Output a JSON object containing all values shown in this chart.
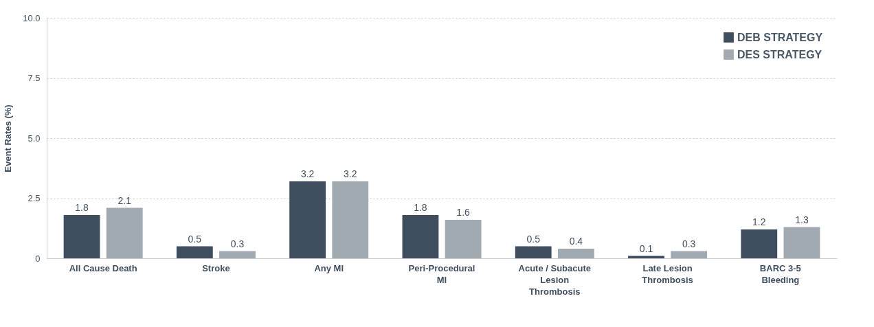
{
  "chart_data": {
    "type": "bar",
    "ylabel": "Event Rates (%)",
    "categories": [
      "All Cause Death",
      "Stroke",
      "Any MI",
      "Peri-Procedural MI",
      "Acute / Subacute Lesion Thrombosis",
      "Late Lesion Thrombosis",
      "BARC 3-5 Bleeding"
    ],
    "series": [
      {
        "name": "DEB STRATEGY",
        "color": "#3f4e5e",
        "values": [
          1.8,
          0.5,
          3.2,
          1.8,
          0.5,
          0.1,
          1.2
        ]
      },
      {
        "name": "DES STRATEGY",
        "color": "#a1a9b1",
        "values": [
          2.1,
          0.3,
          3.2,
          1.6,
          0.4,
          0.3,
          1.3
        ]
      }
    ],
    "ylim": [
      0,
      10
    ],
    "yticks": [
      0,
      {
        "value": 2.5,
        "label": "2.5"
      },
      {
        "value": 5,
        "label": "5.0"
      },
      {
        "value": 7.5,
        "label": "7.5"
      },
      {
        "value": 10,
        "label": "10.0"
      }
    ],
    "grid": "y",
    "legend": "top right",
    "data_labels": true
  }
}
